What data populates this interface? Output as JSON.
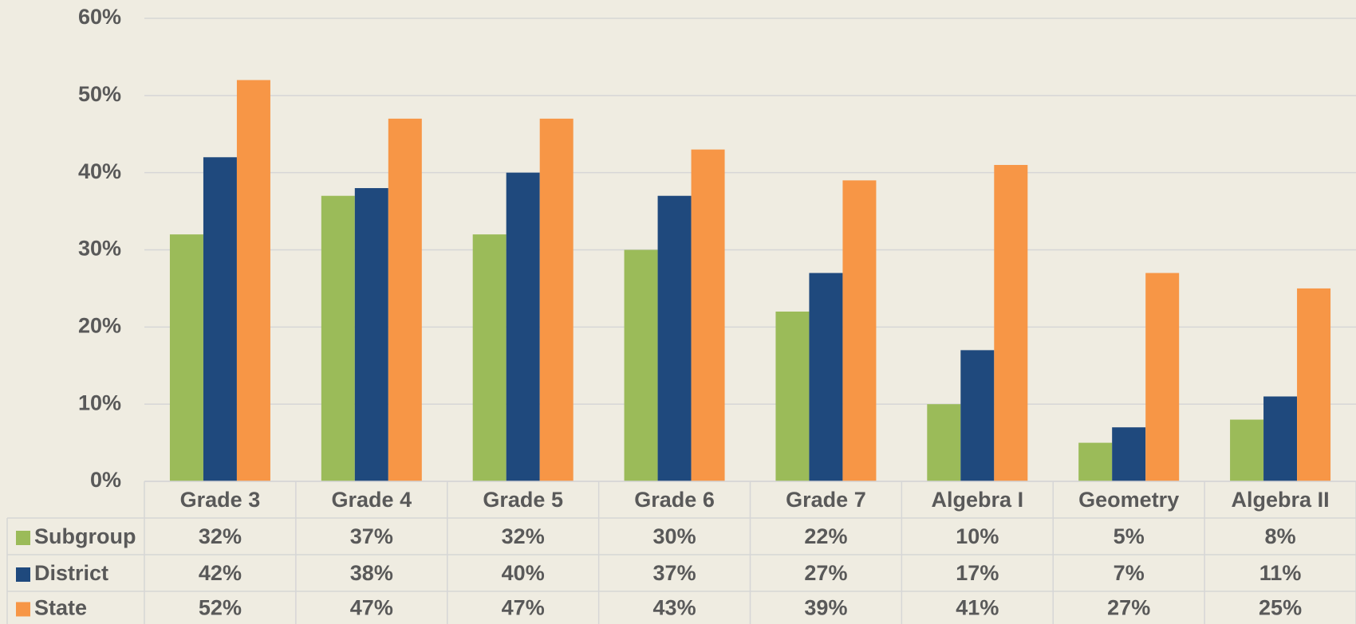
{
  "chart_data": {
    "type": "bar",
    "categories": [
      "Grade 3",
      "Grade 4",
      "Grade 5",
      "Grade 6",
      "Grade 7",
      "Algebra I",
      "Geometry",
      "Algebra II"
    ],
    "series": [
      {
        "name": "Subgroup",
        "color": "#9bbb59",
        "values": [
          32,
          37,
          32,
          30,
          22,
          10,
          5,
          8
        ],
        "value_labels": [
          "32%",
          "37%",
          "32%",
          "30%",
          "22%",
          "10%",
          "5%",
          "8%"
        ]
      },
      {
        "name": "District",
        "color": "#1f497d",
        "values": [
          42,
          38,
          40,
          37,
          27,
          17,
          7,
          11
        ],
        "value_labels": [
          "42%",
          "38%",
          "40%",
          "37%",
          "27%",
          "17%",
          "7%",
          "11%"
        ]
      },
      {
        "name": "State",
        "color": "#f79646",
        "values": [
          52,
          47,
          47,
          43,
          39,
          41,
          27,
          25
        ],
        "value_labels": [
          "52%",
          "47%",
          "47%",
          "43%",
          "39%",
          "41%",
          "27%",
          "25%"
        ]
      }
    ],
    "ylim": [
      0,
      60
    ],
    "yticks": [
      {
        "value": 0,
        "label": "0%"
      },
      {
        "value": 10,
        "label": "10%"
      },
      {
        "value": 20,
        "label": "20%"
      },
      {
        "value": 30,
        "label": "30%"
      },
      {
        "value": 40,
        "label": "40%"
      },
      {
        "value": 50,
        "label": "50%"
      },
      {
        "value": 60,
        "label": "60%"
      }
    ],
    "grid": true
  }
}
